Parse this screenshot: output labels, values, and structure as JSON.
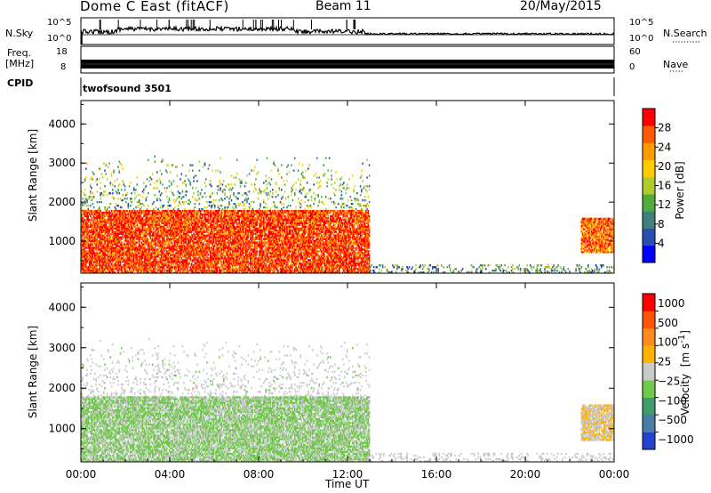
{
  "header": {
    "title": "Dome C East (fitACF)",
    "beam": "Beam 11",
    "date": "20/May/2015"
  },
  "aux_panels": {
    "nsky_label": "N.Sky",
    "nsky_ticks": [
      "10^5",
      "10^0"
    ],
    "nsearch_label": "N.Search",
    "nsearch_ticks": [
      "10^5",
      "10^0"
    ],
    "freq_label": "Freq.",
    "freq_unit": "[MHz]",
    "freq_ticks": [
      "18",
      "8"
    ],
    "nave_label": "Nave",
    "nave_ticks": [
      "60",
      "0"
    ],
    "cpid_label": "CPID",
    "cpid_value": "twofsound 3501"
  },
  "chart_data": [
    {
      "type": "heatmap",
      "title": "",
      "xlabel": "Time UT",
      "ylabel": "Slant Range [km]",
      "x_ticks": [
        "00:00",
        "04:00",
        "08:00",
        "12:00",
        "16:00",
        "20:00",
        "00:00"
      ],
      "xlim": [
        0,
        24
      ],
      "y_ticks": [
        "1000",
        "2000",
        "3000",
        "4000"
      ],
      "ylim": [
        180,
        4600
      ],
      "colorbar": {
        "label": "Power [dB]",
        "ticks": [
          "4",
          "8",
          "12",
          "16",
          "20",
          "24",
          "28"
        ],
        "range": [
          0,
          30
        ],
        "colors": [
          "#0000ff",
          "#2a4db0",
          "#3f7f80",
          "#4fae3a",
          "#b0cc2b",
          "#ffcc00",
          "#ff9a00",
          "#ff5a00",
          "#ff0000"
        ]
      },
      "regions": [
        {
          "t": [
            0.0,
            13.0
          ],
          "r": [
            180,
            1800
          ],
          "level": "high",
          "value": 26
        },
        {
          "t": [
            0.0,
            13.0
          ],
          "r": [
            1800,
            3200
          ],
          "level": "scattered",
          "value": 12
        },
        {
          "t": [
            13.0,
            24.0
          ],
          "r": [
            180,
            400
          ],
          "level": "sparse",
          "value": 10
        },
        {
          "t": [
            22.5,
            24.0
          ],
          "r": [
            700,
            1600
          ],
          "level": "high",
          "value": 24
        }
      ]
    },
    {
      "type": "heatmap",
      "title": "",
      "xlabel": "Time UT",
      "ylabel": "Slant Range [km]",
      "x_ticks": [
        "00:00",
        "04:00",
        "08:00",
        "12:00",
        "16:00",
        "20:00",
        "00:00"
      ],
      "xlim": [
        0,
        24
      ],
      "y_ticks": [
        "1000",
        "2000",
        "3000",
        "4000"
      ],
      "ylim": [
        180,
        4600
      ],
      "colorbar": {
        "label": "Velocity",
        "unit": "[m s",
        "unit_exp": "-1",
        "unit_close": "]",
        "ticks": [
          "1000",
          "500",
          "100",
          "25",
          "−25",
          "−100",
          "−500",
          "−1000"
        ],
        "range": [
          -1200,
          1200
        ],
        "colors": [
          "#2244cc",
          "#4a7da3",
          "#3f9a6c",
          "#6fc94a",
          "#c9c9c9",
          "#ffb300",
          "#ff8c1a",
          "#ff5500",
          "#ff0000"
        ]
      },
      "regions": [
        {
          "t": [
            0.0,
            13.0
          ],
          "r": [
            180,
            1800
          ],
          "level": "negative",
          "value": -150
        },
        {
          "t": [
            0.0,
            13.0
          ],
          "r": [
            1800,
            3200
          ],
          "level": "scattered",
          "value": -50
        },
        {
          "t": [
            13.0,
            24.0
          ],
          "r": [
            180,
            400
          ],
          "level": "sparse",
          "value": -30
        },
        {
          "t": [
            22.5,
            24.0
          ],
          "r": [
            700,
            1600
          ],
          "level": "positive",
          "value": 100
        }
      ]
    }
  ]
}
